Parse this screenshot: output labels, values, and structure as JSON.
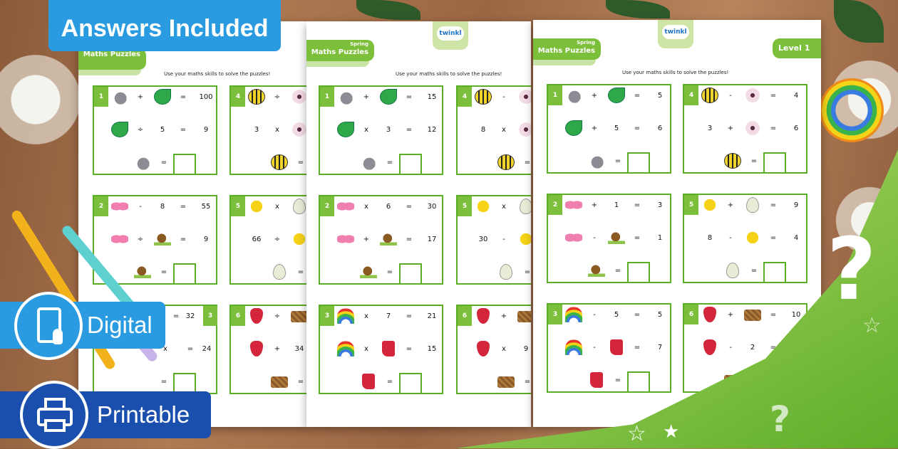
{
  "badges": {
    "answers": "Answers Included",
    "digital": "Digital",
    "printable": "Printable"
  },
  "icons": {
    "digital": "tablet-touch-icon",
    "printable": "printer-icon"
  },
  "colors": {
    "accent_green": "#7cbf3a",
    "badge_blue": "#2a9be0",
    "badge_navy": "#1a4fae"
  },
  "sheets": [
    {
      "subtitle": "",
      "title": "Maths Puzzles",
      "logo": "",
      "level": "",
      "instructions": "Use your maths skills to solve the puzzles!",
      "puzzles": [
        {
          "n": "1",
          "r1": [
            "rabbit",
            "+",
            "leaf",
            "=",
            "100"
          ],
          "r2": [
            "leaf",
            "÷",
            "5",
            "=",
            "9"
          ],
          "r3": "rabbit"
        },
        {
          "n": "4",
          "r1": [
            "bee",
            "÷",
            "flower",
            "",
            ""
          ],
          "r2": [
            "3",
            "x",
            "flower",
            "",
            ""
          ],
          "r3": "bee"
        },
        {
          "n": "2",
          "r1": [
            "butterfly",
            "-",
            "8",
            "=",
            "55"
          ],
          "r2": [
            "butterfly",
            "÷",
            "snail",
            "=",
            "9"
          ],
          "r3": "snail"
        },
        {
          "n": "5",
          "r1": [
            "chick",
            "x",
            "egg",
            "",
            ""
          ],
          "r2": [
            "66",
            "÷",
            "chick",
            "",
            ""
          ],
          "r3": "egg"
        },
        {
          "n": "3",
          "r1": [
            "",
            "",
            "",
            "=",
            "32"
          ],
          "r2": [
            "",
            "x",
            "",
            "=",
            "24"
          ],
          "r3": ""
        },
        {
          "n": "6",
          "r1": [
            "strawberry",
            "÷",
            "basket",
            "",
            ""
          ],
          "r2": [
            "strawberry",
            "+",
            "34",
            "",
            ""
          ],
          "r3": "basket"
        }
      ]
    },
    {
      "subtitle": "Spring",
      "title": "Maths Puzzles",
      "logo": "twinkl",
      "level": "",
      "instructions": "Use your maths skills to solve the puzzles!",
      "puzzles": [
        {
          "n": "1",
          "r1": [
            "rabbit",
            "+",
            "leaf",
            "=",
            "15"
          ],
          "r2": [
            "leaf",
            "x",
            "3",
            "=",
            "12"
          ],
          "r3": "rabbit"
        },
        {
          "n": "4",
          "r1": [
            "bee",
            "-",
            "flower",
            "",
            ""
          ],
          "r2": [
            "8",
            "x",
            "flower",
            "",
            ""
          ],
          "r3": "bee"
        },
        {
          "n": "2",
          "r1": [
            "butterfly",
            "x",
            "6",
            "=",
            "30"
          ],
          "r2": [
            "butterfly",
            "+",
            "snail",
            "=",
            "17"
          ],
          "r3": "snail"
        },
        {
          "n": "5",
          "r1": [
            "chick",
            "x",
            "egg",
            "",
            ""
          ],
          "r2": [
            "30",
            "-",
            "chick",
            "",
            ""
          ],
          "r3": "egg"
        },
        {
          "n": "3",
          "r1": [
            "rainbow",
            "x",
            "7",
            "=",
            "21"
          ],
          "r2": [
            "rainbow",
            "x",
            "boot",
            "=",
            "15"
          ],
          "r3": "boot"
        },
        {
          "n": "6",
          "r1": [
            "strawberry",
            "+",
            "basket",
            "",
            ""
          ],
          "r2": [
            "strawberry",
            "x",
            "9",
            "",
            ""
          ],
          "r3": "basket"
        }
      ]
    },
    {
      "subtitle": "Spring",
      "title": "Maths Puzzles",
      "logo": "twinkl",
      "level": "Level 1",
      "instructions": "Use your maths skills to solve the puzzles!",
      "puzzles": [
        {
          "n": "1",
          "r1": [
            "rabbit",
            "+",
            "leaf",
            "=",
            "5"
          ],
          "r2": [
            "leaf",
            "+",
            "5",
            "=",
            "6"
          ],
          "r3": "rabbit"
        },
        {
          "n": "4",
          "r1": [
            "bee",
            "-",
            "flower",
            "=",
            "4"
          ],
          "r2": [
            "3",
            "+",
            "flower",
            "=",
            "6"
          ],
          "r3": "bee"
        },
        {
          "n": "2",
          "r1": [
            "butterfly",
            "+",
            "1",
            "=",
            "3"
          ],
          "r2": [
            "butterfly",
            "-",
            "snail",
            "=",
            "1"
          ],
          "r3": "snail"
        },
        {
          "n": "5",
          "r1": [
            "chick",
            "+",
            "egg",
            "=",
            "9"
          ],
          "r2": [
            "8",
            "-",
            "chick",
            "=",
            "4"
          ],
          "r3": "egg"
        },
        {
          "n": "3",
          "r1": [
            "rainbow",
            "-",
            "5",
            "=",
            "5"
          ],
          "r2": [
            "rainbow",
            "-",
            "boot",
            "=",
            "7"
          ],
          "r3": "boot"
        },
        {
          "n": "6",
          "r1": [
            "strawberry",
            "+",
            "basket",
            "=",
            "10"
          ],
          "r2": [
            "strawberry",
            "-",
            "2",
            "=",
            ""
          ],
          "r3": "basket"
        }
      ]
    }
  ]
}
